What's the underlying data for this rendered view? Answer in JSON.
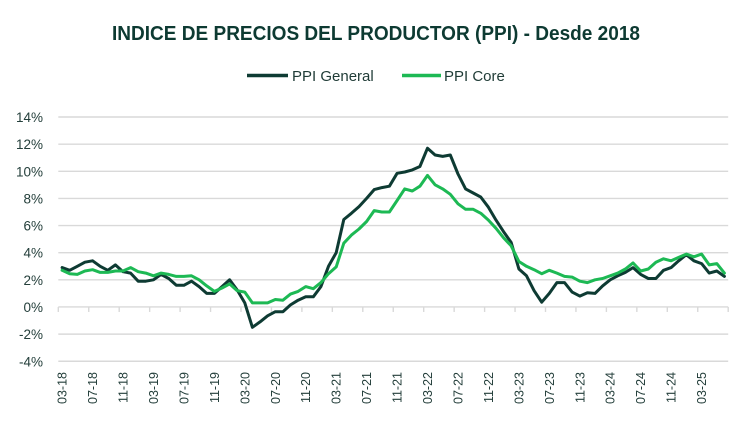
{
  "chart_data": {
    "type": "line",
    "title": "INDICE DE PRECIOS DEL PRODUCTOR (PPI) - Desde 2018",
    "xlabel": "",
    "ylabel": "",
    "ylim": [
      -4,
      14
    ],
    "y_ticks": [
      -4,
      -2,
      0,
      2,
      4,
      6,
      8,
      10,
      12,
      14
    ],
    "y_tick_labels": [
      "-4%",
      "-2%",
      "0%",
      "2%",
      "4%",
      "6%",
      "8%",
      "10%",
      "12%",
      "14%"
    ],
    "grid": true,
    "legend_position": "top",
    "categories": [
      "03-18",
      "04-18",
      "05-18",
      "06-18",
      "07-18",
      "08-18",
      "09-18",
      "10-18",
      "11-18",
      "12-18",
      "01-19",
      "02-19",
      "03-19",
      "04-19",
      "05-19",
      "06-19",
      "07-19",
      "08-19",
      "09-19",
      "10-19",
      "11-19",
      "12-19",
      "01-20",
      "02-20",
      "03-20",
      "04-20",
      "05-20",
      "06-20",
      "07-20",
      "08-20",
      "09-20",
      "10-20",
      "11-20",
      "12-20",
      "01-21",
      "02-21",
      "03-21",
      "04-21",
      "05-21",
      "06-21",
      "07-21",
      "08-21",
      "09-21",
      "10-21",
      "11-21",
      "12-21",
      "01-22",
      "02-22",
      "03-22",
      "04-22",
      "05-22",
      "06-22",
      "07-22",
      "08-22",
      "09-22",
      "10-22",
      "11-22",
      "12-22",
      "01-23",
      "02-23",
      "03-23",
      "04-23",
      "05-23",
      "06-23",
      "07-23",
      "08-23",
      "09-23",
      "10-23",
      "11-23",
      "12-23",
      "01-24",
      "02-24",
      "03-24",
      "04-24",
      "05-24",
      "06-24",
      "07-24",
      "08-24",
      "09-24",
      "10-24",
      "11-24",
      "12-24",
      "01-25",
      "02-25",
      "03-25",
      "04-25",
      "05-25",
      "06-25"
    ],
    "x_tick_labels": [
      "03-18",
      "07-18",
      "11-18",
      "03-19",
      "07-19",
      "11-19",
      "03-20",
      "07-20",
      "11-20",
      "03-21",
      "07-21",
      "11-21",
      "03-22",
      "07-22",
      "11-22",
      "03-23",
      "07-23",
      "11-23",
      "03-24",
      "07-24",
      "11-24",
      "03-25"
    ],
    "series": [
      {
        "name": "PPI General",
        "color": "#0e3b33",
        "values": [
          2.9,
          2.7,
          3.0,
          3.3,
          3.4,
          3.0,
          2.7,
          3.1,
          2.6,
          2.5,
          1.9,
          1.9,
          2.0,
          2.4,
          2.1,
          1.6,
          1.6,
          1.9,
          1.5,
          1.0,
          1.0,
          1.5,
          2.0,
          1.25,
          0.3,
          -1.5,
          -1.1,
          -0.65,
          -0.35,
          -0.35,
          0.15,
          0.5,
          0.75,
          0.75,
          1.5,
          3.0,
          4.0,
          6.45,
          6.9,
          7.4,
          8.0,
          8.65,
          8.8,
          8.9,
          9.85,
          9.95,
          10.1,
          10.35,
          11.7,
          11.2,
          11.1,
          11.2,
          9.8,
          8.7,
          8.4,
          8.1,
          7.35,
          6.4,
          5.55,
          4.75,
          2.8,
          2.3,
          1.2,
          0.35,
          1.0,
          1.8,
          1.8,
          1.1,
          0.8,
          1.05,
          1.0,
          1.55,
          2.0,
          2.3,
          2.55,
          2.9,
          2.4,
          2.1,
          2.1,
          2.7,
          2.9,
          3.4,
          3.85,
          3.4,
          3.2,
          2.5,
          2.65,
          2.25
        ]
      },
      {
        "name": "PPI Core",
        "color": "#1db954",
        "values": [
          2.7,
          2.45,
          2.4,
          2.65,
          2.75,
          2.55,
          2.55,
          2.65,
          2.65,
          2.9,
          2.6,
          2.5,
          2.3,
          2.5,
          2.4,
          2.25,
          2.25,
          2.3,
          2.0,
          1.55,
          1.15,
          1.4,
          1.7,
          1.2,
          1.1,
          0.3,
          0.3,
          0.3,
          0.55,
          0.5,
          0.95,
          1.15,
          1.5,
          1.35,
          1.8,
          2.45,
          2.95,
          4.7,
          5.3,
          5.75,
          6.3,
          7.1,
          7.0,
          7.0,
          7.85,
          8.7,
          8.55,
          8.9,
          9.7,
          9.0,
          8.7,
          8.3,
          7.6,
          7.2,
          7.2,
          6.9,
          6.4,
          5.8,
          5.1,
          4.5,
          3.35,
          3.0,
          2.75,
          2.45,
          2.7,
          2.5,
          2.25,
          2.2,
          1.9,
          1.8,
          2.0,
          2.1,
          2.3,
          2.5,
          2.8,
          3.25,
          2.65,
          2.8,
          3.3,
          3.55,
          3.4,
          3.65,
          3.9,
          3.7,
          3.9,
          3.1,
          3.2,
          2.5
        ]
      }
    ]
  },
  "legend": {
    "items": [
      {
        "label": "PPI General",
        "color": "#0e3b33"
      },
      {
        "label": "PPI Core",
        "color": "#1db954"
      }
    ]
  }
}
